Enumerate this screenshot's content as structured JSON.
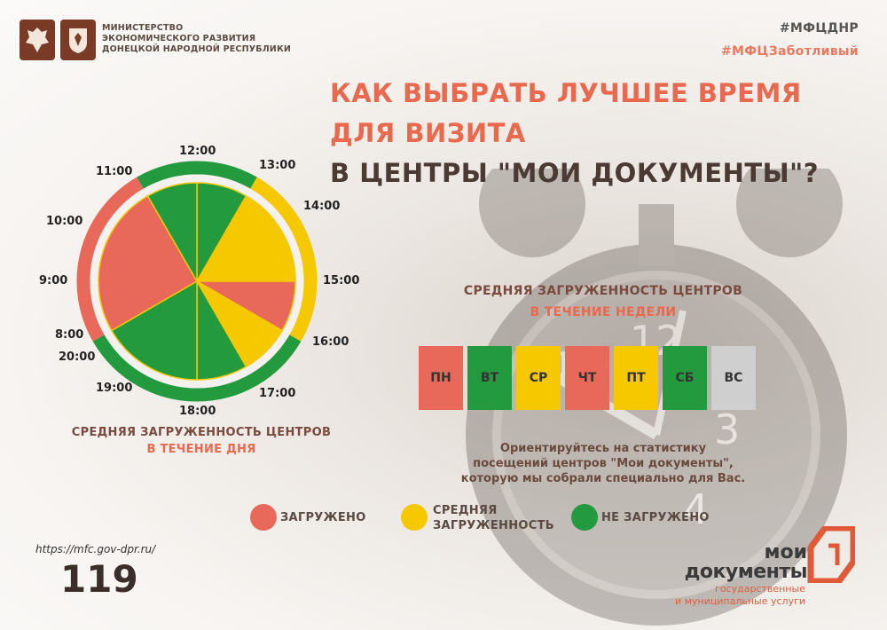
{
  "header": {
    "ministry_lines": [
      "МИНИСТЕРСТВО",
      "ЭКОНОМИЧЕСКОГО РАЗВИТИЯ",
      "ДОНЕЦКОЙ НАРОДНОЙ РЕСПУБЛИКИ"
    ],
    "hashtag_1": "#МФЦДНР",
    "hashtag_2": "#МФЦЗаботливый"
  },
  "title": {
    "line1": "КАК ВЫБРАТЬ ЛУЧШЕЕ ВРЕМЯ",
    "line2": "ДЛЯ ВИЗИТА",
    "line3": "В ЦЕНТРЫ \"МОИ ДОКУМЕНТЫ\"?"
  },
  "colors": {
    "loaded": "#e8695a",
    "medium": "#f5c800",
    "free": "#239a3e",
    "closed": "#cfcfcf",
    "accent": "#e8694e"
  },
  "day_chart": {
    "hours": [
      "8:00",
      "9:00",
      "10:00",
      "11:00",
      "12:00",
      "13:00",
      "14:00",
      "15:00",
      "16:00",
      "17:00",
      "18:00",
      "19:00",
      "20:00"
    ],
    "inner_segments": [
      {
        "from": "12:00",
        "to": "13:00",
        "status": "free"
      },
      {
        "from": "13:00",
        "to": "15:00",
        "status": "medium"
      },
      {
        "from": "15:00",
        "to": "16:00",
        "status": "loaded"
      },
      {
        "from": "16:00",
        "to": "17:00",
        "status": "medium"
      },
      {
        "from": "17:00",
        "to": "18:00",
        "status": "free"
      },
      {
        "from": "6:00",
        "to": "8:00",
        "status": "free"
      },
      {
        "from": "8:00",
        "to": "11:00",
        "status": "loaded"
      },
      {
        "from": "11:00",
        "to": "12:00",
        "status": "free"
      }
    ],
    "outer_segments": [
      {
        "from": "18:00",
        "to": "20:00",
        "status": "free"
      },
      {
        "from": "20:00",
        "to": "11:00",
        "status": "loaded"
      },
      {
        "from": "11:00",
        "to": "13:00",
        "status": "free"
      },
      {
        "from": "13:00",
        "to": "16:00",
        "status": "medium"
      },
      {
        "from": "16:00",
        "to": "18:00",
        "status": "free"
      }
    ],
    "caption_1": "СРЕДНЯЯ ЗАГРУЖЕННОСТЬ ЦЕНТРОВ",
    "caption_2": "В ТЕЧЕНИЕ ДНЯ"
  },
  "week_chart": {
    "caption_1": "СРЕДНЯЯ ЗАГРУЖЕННОСТЬ ЦЕНТРОВ",
    "caption_2": "В ТЕЧЕНИЕ НЕДЕЛИ",
    "days": [
      {
        "label": "ПН",
        "status": "loaded"
      },
      {
        "label": "ВТ",
        "status": "free"
      },
      {
        "label": "СР",
        "status": "medium"
      },
      {
        "label": "ЧТ",
        "status": "loaded"
      },
      {
        "label": "ПТ",
        "status": "medium"
      },
      {
        "label": "СБ",
        "status": "free"
      },
      {
        "label": "ВС",
        "status": "closed"
      }
    ]
  },
  "note": {
    "line1": "Ориентируйтесь на статистику",
    "line2": "посещений центров \"Мои документы\",",
    "line3": "которую мы собрали специально для Вас."
  },
  "legend": {
    "loaded": "ЗАГРУЖЕНО",
    "medium_1": "СРЕДНЯЯ",
    "medium_2": "ЗАГРУЖЕННОСТЬ",
    "free": "НЕ ЗАГРУЖЕНО"
  },
  "footer": {
    "url": "https://mfc.gov-dpr.ru/",
    "phone": "119",
    "logo_line1": "мои",
    "logo_line2": "документы",
    "logo_line3": "государственные",
    "logo_line4": "и муниципальные услуги"
  }
}
